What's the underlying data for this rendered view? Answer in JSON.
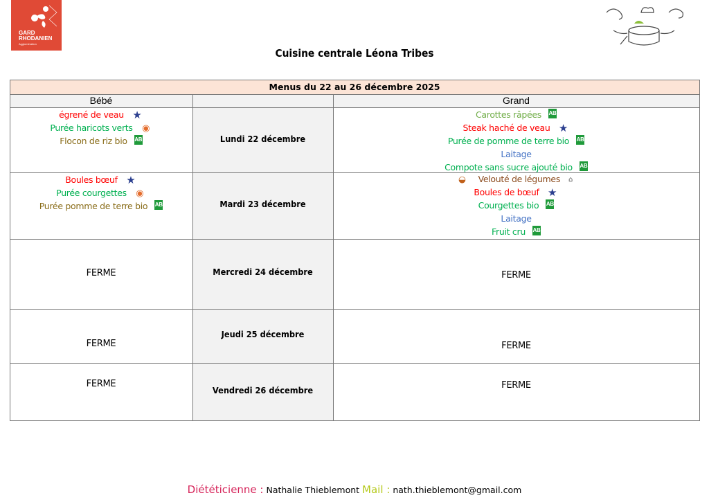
{
  "logo": {
    "line1": "GARD",
    "line2": "RHODANIEN",
    "line3": "Agglomération"
  },
  "title": "Cuisine centrale Léona Tribes",
  "table": {
    "header": "Menus du 22 au 26 décembre 2025",
    "col_bebe": "Bébé",
    "col_grand": "Grand",
    "colors": {
      "header_bg": "#fce4d6",
      "day_bg": "#f2f2f2"
    },
    "days": [
      {
        "label": "Lundi 22 décembre",
        "bebe": [
          {
            "text": "égrené de veau",
            "color": "#ff0000",
            "icon": "france-star-icon"
          },
          {
            "text": "Purée haricots verts",
            "color": "#00b050",
            "icon": "bebe-label-icon"
          },
          {
            "text": "Flocon de riz bio",
            "color": "#8a6d1a",
            "icon": "ab-bio-icon"
          }
        ],
        "grand": [
          {
            "text": "Carottes râpées",
            "color": "#70ad47",
            "icon": "ab-bio-icon"
          },
          {
            "text": "Steak haché de veau",
            "color": "#ff0000",
            "icon": "france-star-icon"
          },
          {
            "text": "Purée de pomme de terre bio",
            "color": "#00b050",
            "icon": "ab-bio-icon"
          },
          {
            "text": "Laitage",
            "color": "#4472c4",
            "icon": ""
          },
          {
            "text": "Compote sans sucre ajouté bio",
            "color": "#00b050",
            "icon": "ab-bio-icon"
          }
        ]
      },
      {
        "label": "Mardi 23 décembre",
        "bebe": [
          {
            "text": "Boules bœuf",
            "color": "#ff0000",
            "icon": "france-star-icon"
          },
          {
            "text": "Purée courgettes",
            "color": "#00b050",
            "icon": "bebe-label-icon"
          },
          {
            "text": "Purée pomme de terre bio",
            "color": "#8a6d1a",
            "icon": "ab-bio-icon"
          }
        ],
        "grand": [
          {
            "text": "Velouté de légumes",
            "color": "#8b4a1c",
            "icon": "homemade-icon"
          },
          {
            "text": "Boules de bœuf",
            "color": "#ff0000",
            "icon": "france-star-icon"
          },
          {
            "text": "Courgettes bio",
            "color": "#00b050",
            "icon": "ab-bio-icon"
          },
          {
            "text": "Laitage",
            "color": "#4472c4",
            "icon": ""
          },
          {
            "text": "Fruit cru",
            "color": "#00b050",
            "icon": "ab-bio-icon"
          }
        ]
      },
      {
        "label": "Mercredi 24 décembre",
        "bebe": "FERME",
        "grand": "FERME"
      },
      {
        "label": "Jeudi 25 décembre",
        "bebe": "FERME",
        "grand": "FERME"
      },
      {
        "label": "Vendredi 26 décembre",
        "bebe": "FERME",
        "grand": "FERME"
      }
    ]
  },
  "footer": {
    "diet_label": "Diététicienne :",
    "diet_name": "Nathalie Thieblemont",
    "mail_label": "Mail :",
    "mail": "nath.thieblemont@gmail.com",
    "diet_color": "#d6245a",
    "mail_color": "#b5c91a"
  }
}
